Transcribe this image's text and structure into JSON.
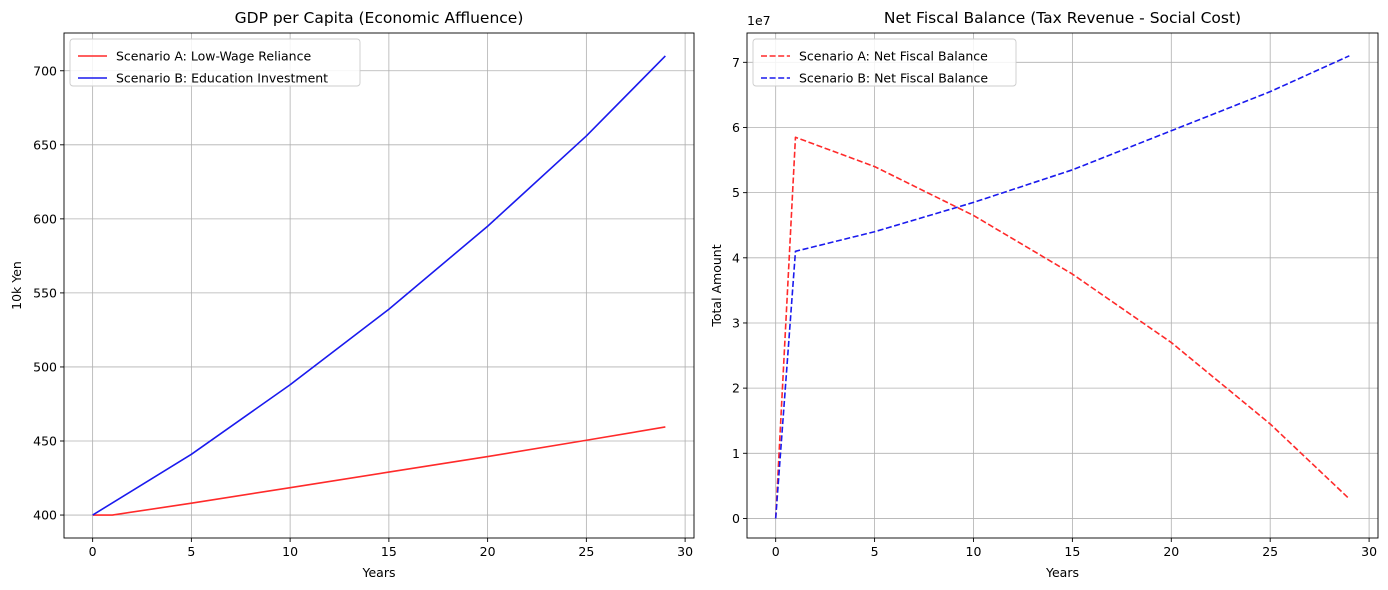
{
  "chart_data": [
    {
      "type": "line",
      "title": "GDP per Capita (Economic Affluence)",
      "xlabel": "Years",
      "ylabel": "10k Yen",
      "xlim": [
        -1.45,
        30.45
      ],
      "ylim": [
        384.5,
        725.5
      ],
      "xticks": [
        0,
        5,
        10,
        15,
        20,
        25,
        30
      ],
      "yticks": [
        400,
        450,
        500,
        550,
        600,
        650,
        700
      ],
      "grid": true,
      "legend": "upper-left",
      "series": [
        {
          "name": "Scenario A: Low-Wage Reliance",
          "color": "#ff2a2a",
          "style": "solid",
          "x": [
            0,
            1,
            5,
            10,
            15,
            20,
            25,
            29
          ],
          "y": [
            400,
            400,
            408,
            418.5,
            429,
            439.5,
            450.5,
            459.5
          ]
        },
        {
          "name": "Scenario B: Education Investment",
          "color": "#1a1aee",
          "style": "solid",
          "x": [
            0,
            5,
            10,
            15,
            20,
            25,
            29
          ],
          "y": [
            400,
            441,
            488,
            539,
            595,
            656,
            710
          ]
        }
      ]
    },
    {
      "type": "line",
      "title": "Net Fiscal Balance (Tax Revenue - Social Cost)",
      "xlabel": "Years",
      "ylabel": "Total Amount",
      "offset_text": "1e7",
      "xlim": [
        -1.45,
        30.45
      ],
      "ylim": [
        -0.3,
        7.45
      ],
      "xticks": [
        0,
        5,
        10,
        15,
        20,
        25,
        30
      ],
      "yticks": [
        0,
        1,
        2,
        3,
        4,
        5,
        6,
        7
      ],
      "grid": true,
      "legend": "upper-left",
      "series": [
        {
          "name": "Scenario A: Net Fiscal Balance",
          "color": "#ff2a2a",
          "style": "dashed",
          "x": [
            0,
            1,
            5,
            10,
            15,
            20,
            25,
            29
          ],
          "y": [
            0,
            5.85,
            5.4,
            4.65,
            3.75,
            2.7,
            1.45,
            0.3
          ]
        },
        {
          "name": "Scenario B: Net Fiscal Balance",
          "color": "#1a1aee",
          "style": "dashed",
          "x": [
            0,
            1,
            5,
            10,
            15,
            20,
            25,
            29
          ],
          "y": [
            0,
            4.1,
            4.4,
            4.85,
            5.35,
            5.95,
            6.55,
            7.1
          ]
        }
      ]
    }
  ]
}
